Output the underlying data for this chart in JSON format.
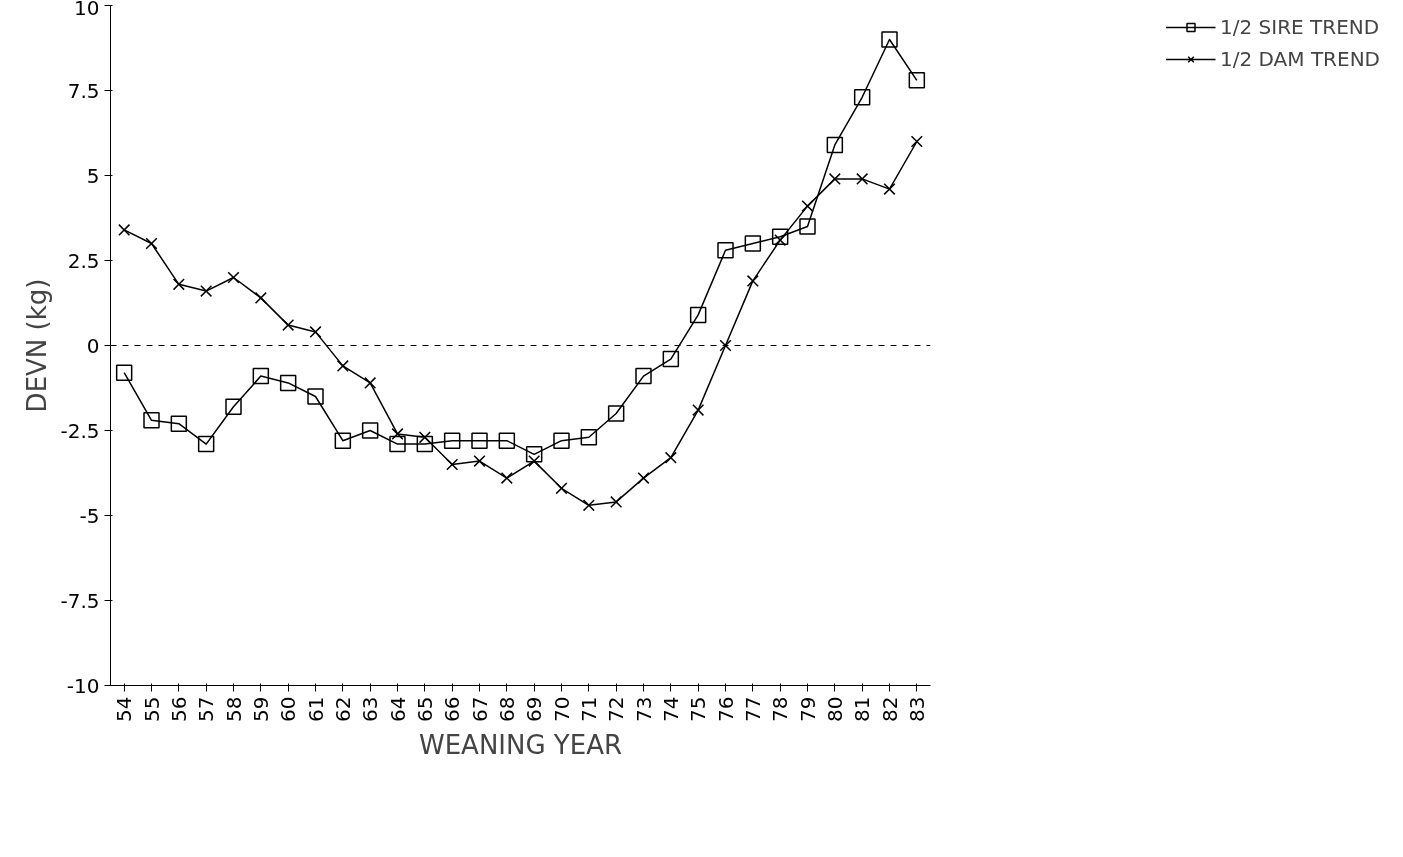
{
  "chart_data": {
    "type": "line",
    "xlabel": "WEANING YEAR",
    "ylabel": "DEVN (kg)",
    "categories": [
      "54",
      "55",
      "56",
      "57",
      "58",
      "59",
      "60",
      "61",
      "62",
      "63",
      "64",
      "65",
      "66",
      "67",
      "68",
      "69",
      "70",
      "71",
      "72",
      "73",
      "74",
      "75",
      "76",
      "77",
      "78",
      "79",
      "80",
      "81",
      "82",
      "83"
    ],
    "series": [
      {
        "name": "1/2 SIRE TREND",
        "color": "#000000",
        "marker": "square",
        "values": [
          -0.8,
          -2.2,
          -2.3,
          -2.9,
          -1.8,
          -0.9,
          -1.1,
          -1.5,
          -2.8,
          -2.5,
          -2.9,
          -2.9,
          -2.8,
          -2.8,
          -2.8,
          -3.2,
          -2.8,
          -2.7,
          -2.0,
          -0.9,
          -0.4,
          0.9,
          2.8,
          3.0,
          3.2,
          3.5,
          5.9,
          7.3,
          9.0,
          7.8
        ]
      },
      {
        "name": "1/2 DAM TREND",
        "color": "#000000",
        "marker": "cross",
        "values": [
          3.4,
          3.0,
          1.8,
          1.6,
          2.0,
          1.4,
          0.6,
          0.4,
          -0.6,
          -1.1,
          -2.6,
          -2.7,
          -3.5,
          -3.4,
          -3.9,
          -3.4,
          -4.2,
          -4.7,
          -4.6,
          -3.9,
          -3.3,
          -1.9,
          0,
          1.9,
          3.1,
          4.1,
          4.9,
          4.9,
          4.6,
          6.0
        ]
      }
    ],
    "ylim": [
      -10,
      10
    ],
    "yticks": [
      -10,
      -7.5,
      -5,
      -2.5,
      0,
      2.5,
      5,
      7.5,
      10
    ],
    "ref_lines": [
      {
        "axis": "y",
        "value": 0,
        "line_style": "dashed",
        "color": "#000000"
      }
    ],
    "grid": false,
    "legend": "top right",
    "line_style": "solid"
  }
}
